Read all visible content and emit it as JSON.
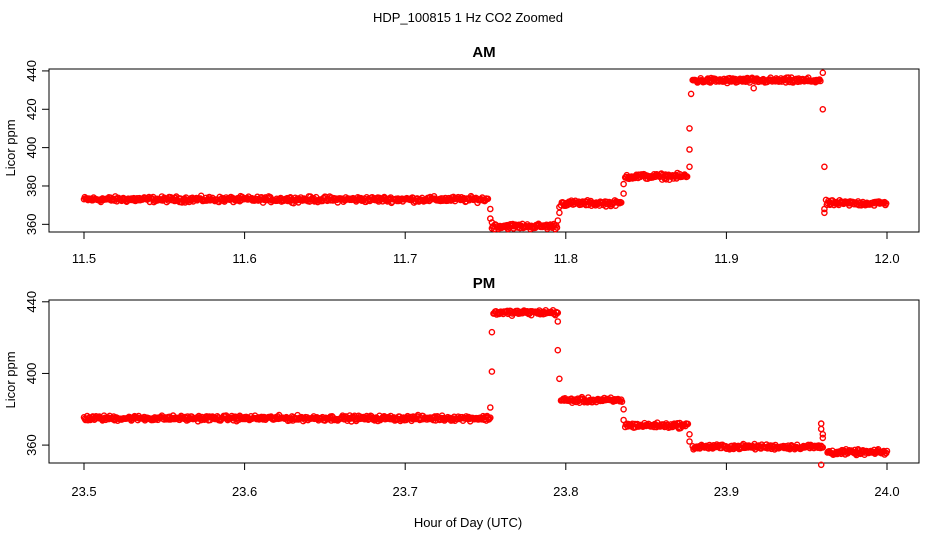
{
  "title": "HDP_100815  1 Hz CO2 Zoomed",
  "xlabel": "Hour of Day (UTC)",
  "colors": {
    "points": "#ff0000",
    "axes": "#000000",
    "background": "#ffffff"
  },
  "chart_data": [
    {
      "type": "scatter",
      "title": "AM",
      "ylabel": "Licor ppm",
      "xlim": [
        11.5,
        12.0
      ],
      "ylim": [
        356,
        441
      ],
      "x_ticks": [
        "11.5",
        "11.6",
        "11.7",
        "11.8",
        "11.9",
        "12.0"
      ],
      "y_ticks": [
        "360",
        "380",
        "400",
        "420",
        "440"
      ],
      "sampling": "1 Hz (continuous point cloud)",
      "segments": [
        {
          "x": [
            11.5,
            11.752
          ],
          "y": 373,
          "noise": 1.2
        },
        {
          "x": [
            11.754,
            11.795
          ],
          "y": 359,
          "noise": 1.2
        },
        {
          "x": [
            11.797,
            11.835
          ],
          "y": 371,
          "noise": 1.2
        },
        {
          "x": [
            11.837,
            11.876
          ],
          "y": 385,
          "noise": 1.2
        },
        {
          "x": [
            11.879,
            11.959
          ],
          "y": 435,
          "noise": 1.2
        },
        {
          "x": [
            11.962,
            12.0
          ],
          "y": 371,
          "noise": 1.2
        }
      ],
      "transitions": [
        {
          "x": 11.753,
          "y": 368
        },
        {
          "x": 11.753,
          "y": 363
        },
        {
          "x": 11.754,
          "y": 361
        },
        {
          "x": 11.795,
          "y": 362
        },
        {
          "x": 11.796,
          "y": 366
        },
        {
          "x": 11.796,
          "y": 369
        },
        {
          "x": 11.836,
          "y": 376
        },
        {
          "x": 11.836,
          "y": 381
        },
        {
          "x": 11.877,
          "y": 390
        },
        {
          "x": 11.877,
          "y": 399
        },
        {
          "x": 11.877,
          "y": 410
        },
        {
          "x": 11.878,
          "y": 428
        },
        {
          "x": 11.917,
          "y": 431
        },
        {
          "x": 11.96,
          "y": 439
        },
        {
          "x": 11.96,
          "y": 420
        },
        {
          "x": 11.961,
          "y": 390
        },
        {
          "x": 11.961,
          "y": 368
        },
        {
          "x": 11.961,
          "y": 366
        }
      ]
    },
    {
      "type": "scatter",
      "title": "PM",
      "ylabel": "Licor ppm",
      "xlim": [
        23.5,
        24.0
      ],
      "ylim": [
        350,
        441
      ],
      "x_ticks": [
        "23.5",
        "23.6",
        "23.7",
        "23.8",
        "23.9",
        "24.0"
      ],
      "y_ticks": [
        "360",
        "400",
        "440"
      ],
      "sampling": "1 Hz (continuous point cloud)",
      "segments": [
        {
          "x": [
            23.5,
            23.753
          ],
          "y": 375,
          "noise": 1.2
        },
        {
          "x": [
            23.755,
            23.795
          ],
          "y": 434,
          "noise": 1.2
        },
        {
          "x": [
            23.797,
            23.835
          ],
          "y": 385,
          "noise": 1.2
        },
        {
          "x": [
            23.837,
            23.876
          ],
          "y": 371,
          "noise": 1.2
        },
        {
          "x": [
            23.879,
            23.96
          ],
          "y": 359,
          "noise": 1.2
        },
        {
          "x": [
            23.963,
            24.0
          ],
          "y": 356,
          "noise": 1.2
        }
      ],
      "transitions": [
        {
          "x": 23.753,
          "y": 381
        },
        {
          "x": 23.754,
          "y": 401
        },
        {
          "x": 23.754,
          "y": 423
        },
        {
          "x": 23.795,
          "y": 429
        },
        {
          "x": 23.795,
          "y": 413
        },
        {
          "x": 23.796,
          "y": 397
        },
        {
          "x": 23.836,
          "y": 380
        },
        {
          "x": 23.836,
          "y": 374
        },
        {
          "x": 23.877,
          "y": 366
        },
        {
          "x": 23.877,
          "y": 362
        },
        {
          "x": 23.959,
          "y": 372
        },
        {
          "x": 23.959,
          "y": 369
        },
        {
          "x": 23.96,
          "y": 366
        },
        {
          "x": 23.96,
          "y": 364
        },
        {
          "x": 23.959,
          "y": 349
        }
      ]
    }
  ]
}
